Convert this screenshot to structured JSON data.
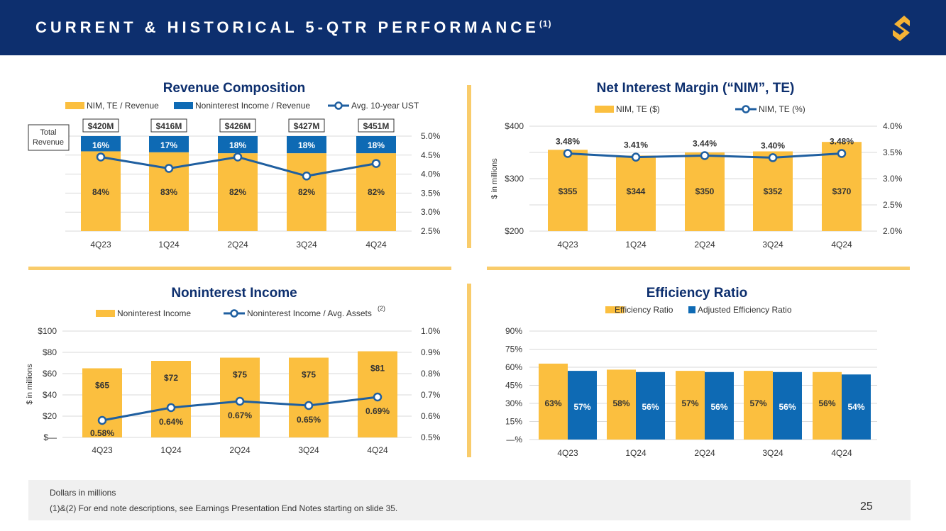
{
  "header": {
    "title": "CURRENT & HISTORICAL 5-QTR PERFORMANCE",
    "title_note": "(1)",
    "logo_icon": "brand-s-logo-icon",
    "bg_color": "#0d2f6e",
    "logo_color": "#f5b335"
  },
  "colors": {
    "gold": "#fbbf3f",
    "blue": "#0e6ab4",
    "line": "#1f5fa0",
    "divider": "#f9cc6b"
  },
  "chart_data": [
    {
      "id": "revenue",
      "type": "bar",
      "title": "Revenue Composition",
      "categories": [
        "4Q23",
        "1Q24",
        "2Q24",
        "3Q24",
        "4Q24"
      ],
      "series": [
        {
          "name": "NIM, TE / Revenue",
          "values": [
            84,
            83,
            82,
            82,
            82
          ],
          "labels": [
            "84%",
            "83%",
            "82%",
            "82%",
            "82%"
          ]
        },
        {
          "name": "Noninterest Income / Revenue",
          "values": [
            16,
            17,
            18,
            18,
            18
          ],
          "labels": [
            "16%",
            "17%",
            "18%",
            "18%",
            "18%"
          ]
        },
        {
          "name": "Avg. 10-year UST",
          "axis": "right",
          "values": [
            4.45,
            4.15,
            4.45,
            3.95,
            4.28
          ]
        }
      ],
      "totals": [
        "$420M",
        "$416M",
        "$426M",
        "$427M",
        "$451M"
      ],
      "total_label": [
        "Total",
        "Revenue"
      ],
      "right_axis": {
        "ticks": [
          "5.0%",
          "4.5%",
          "4.0%",
          "3.5%",
          "3.0%",
          "2.5%"
        ],
        "ylim": [
          2.5,
          5.0
        ]
      }
    },
    {
      "id": "nim",
      "type": "bar",
      "title": "Net Interest Margin (“NIM”, TE)",
      "categories": [
        "4Q23",
        "1Q24",
        "2Q24",
        "3Q24",
        "4Q24"
      ],
      "series": [
        {
          "name": "NIM, TE ($)",
          "values": [
            355,
            344,
            350,
            352,
            370
          ],
          "labels": [
            "$355",
            "$344",
            "$350",
            "$352",
            "$370"
          ]
        },
        {
          "name": "NIM, TE (%)",
          "axis": "right",
          "values": [
            3.48,
            3.41,
            3.44,
            3.4,
            3.48
          ],
          "labels": [
            "3.48%",
            "3.41%",
            "3.44%",
            "3.40%",
            "3.48%"
          ]
        }
      ],
      "ylabel": "$ in millions",
      "left_axis": {
        "ticks": [
          "$400",
          "$300",
          "$200"
        ],
        "ylim": [
          200,
          400
        ]
      },
      "right_axis": {
        "ticks": [
          "4.0%",
          "3.5%",
          "3.0%",
          "2.5%",
          "2.0%"
        ],
        "ylim": [
          2.0,
          4.0
        ]
      }
    },
    {
      "id": "nii",
      "type": "bar",
      "title": "Noninterest Income",
      "categories": [
        "4Q23",
        "1Q24",
        "2Q24",
        "3Q24",
        "4Q24"
      ],
      "series": [
        {
          "name": "Noninterest Income",
          "values": [
            65,
            72,
            75,
            75,
            81
          ],
          "labels": [
            "$65",
            "$72",
            "$75",
            "$75",
            "$81"
          ]
        },
        {
          "name": "Noninterest Income / Avg. Assets",
          "note": "(2)",
          "axis": "right",
          "values": [
            0.58,
            0.64,
            0.67,
            0.65,
            0.69
          ],
          "labels": [
            "0.58%",
            "0.64%",
            "0.67%",
            "0.65%",
            "0.69%"
          ]
        }
      ],
      "ylabel": "$ in millions",
      "left_axis": {
        "ticks": [
          "$100",
          "$80",
          "$60",
          "$40",
          "$20",
          "$—"
        ],
        "ylim": [
          0,
          100
        ]
      },
      "right_axis": {
        "ticks": [
          "1.0%",
          "0.9%",
          "0.8%",
          "0.7%",
          "0.6%",
          "0.5%"
        ],
        "ylim": [
          0.5,
          1.0
        ]
      }
    },
    {
      "id": "eff",
      "type": "bar",
      "title": "Efficiency Ratio",
      "categories": [
        "4Q23",
        "1Q24",
        "2Q24",
        "3Q24",
        "4Q24"
      ],
      "series": [
        {
          "name": "Efficiency Ratio",
          "values": [
            63,
            58,
            57,
            57,
            56
          ],
          "labels": [
            "63%",
            "58%",
            "57%",
            "57%",
            "56%"
          ]
        },
        {
          "name": "Adjusted Efficiency Ratio",
          "values": [
            57,
            56,
            56,
            56,
            54
          ],
          "labels": [
            "57%",
            "56%",
            "56%",
            "56%",
            "54%"
          ]
        }
      ],
      "left_axis": {
        "ticks": [
          "90%",
          "75%",
          "60%",
          "45%",
          "30%",
          "15%",
          "—%"
        ],
        "ylim": [
          0,
          90
        ]
      }
    }
  ],
  "footer": {
    "note1": "Dollars in millions",
    "note2": "(1)&(2)  For end note descriptions, see Earnings Presentation End Notes starting on slide 35.",
    "page": "25"
  }
}
